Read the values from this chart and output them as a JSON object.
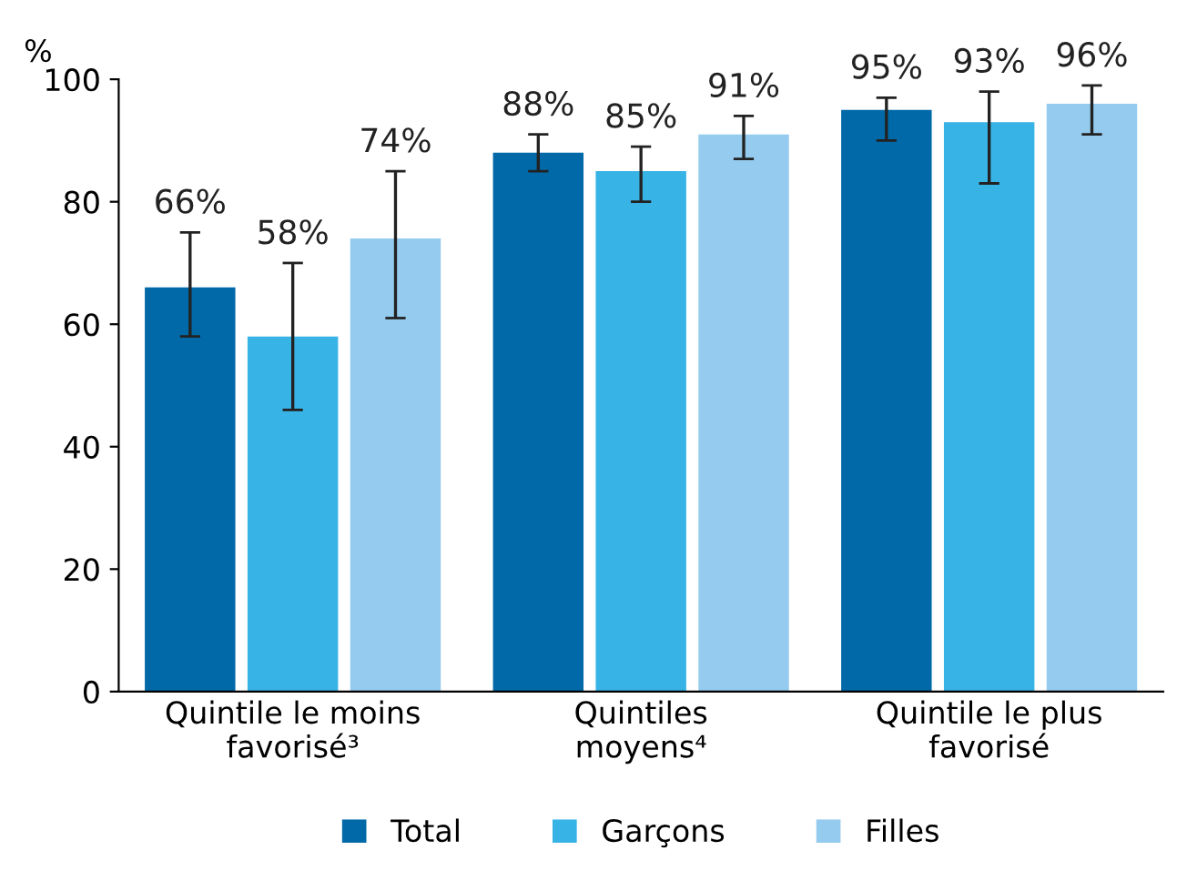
{
  "chart_data": {
    "type": "bar",
    "ylabel": "%",
    "categories": [
      "Quintile le moins favorisé³",
      "Quintiles moyens⁴",
      "Quintile le plus favorisé"
    ],
    "series": [
      {
        "name": "Total",
        "color": "#0169a8",
        "values": [
          66,
          88,
          95
        ],
        "errors": [
          [
            58,
            75
          ],
          [
            85,
            91
          ],
          [
            90,
            97
          ]
        ],
        "value_labels": [
          "66%",
          "88%",
          "95%"
        ]
      },
      {
        "name": "Garçons",
        "color": "#38b3e6",
        "values": [
          58,
          85,
          93
        ],
        "errors": [
          [
            46,
            70
          ],
          [
            80,
            89
          ],
          [
            83,
            98
          ]
        ],
        "value_labels": [
          "58%",
          "85%",
          "93%"
        ]
      },
      {
        "name": "Filles",
        "color": "#94cbee",
        "values": [
          74,
          91,
          96
        ],
        "errors": [
          [
            61,
            85
          ],
          [
            87,
            94
          ],
          [
            91,
            99
          ]
        ],
        "value_labels": [
          "74%",
          "91%",
          "96%"
        ]
      }
    ],
    "ylim": [
      0,
      100
    ],
    "yticks": [
      0,
      20,
      40,
      60,
      80,
      100
    ],
    "grid": false,
    "legend": "bottom"
  }
}
